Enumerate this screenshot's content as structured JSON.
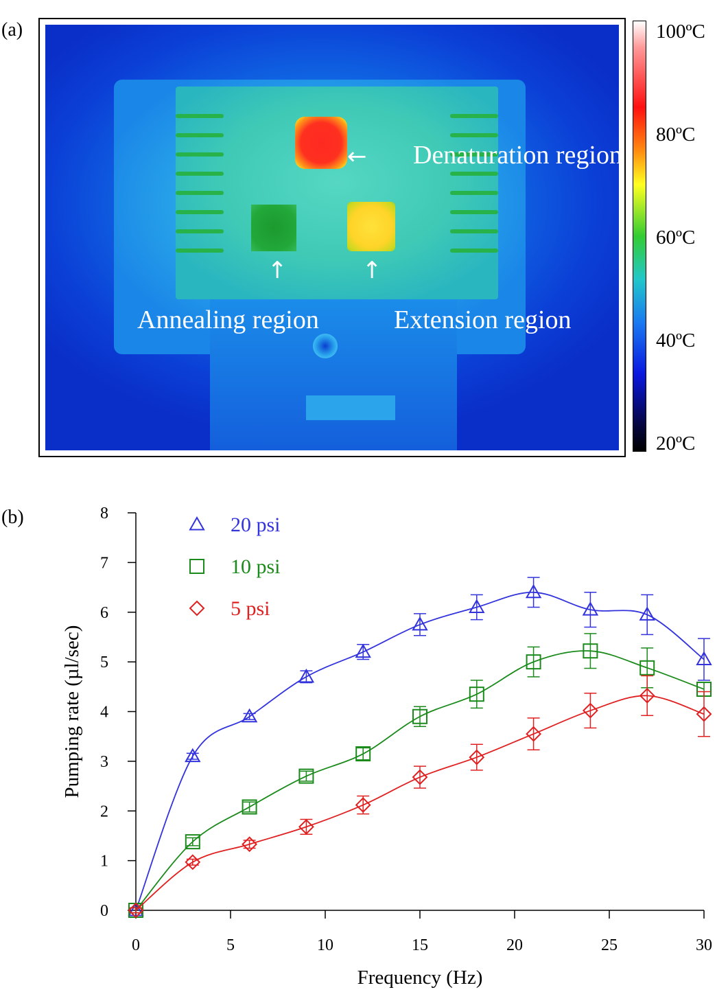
{
  "panel_a": {
    "label": "(a)",
    "annotations": {
      "denaturation": "Denaturation region",
      "annealing": "Annealing region",
      "extension": "Extension region"
    },
    "colorbar_ticks": [
      "100ºC",
      "80ºC",
      "60ºC",
      "40ºC",
      "20ºC"
    ]
  },
  "panel_b": {
    "label": "(b)"
  },
  "chart_data": {
    "type": "scatter",
    "xlabel": "Frequency (Hz)",
    "ylabel": "Pumping rate (µl/sec)",
    "xlim": [
      0,
      30
    ],
    "ylim": [
      0,
      8
    ],
    "xticks": [
      0,
      5,
      10,
      15,
      20,
      25,
      30
    ],
    "yticks": [
      0,
      1,
      2,
      3,
      4,
      5,
      6,
      7,
      8
    ],
    "legend_position": "top-left",
    "x": [
      0,
      3,
      6,
      9,
      12,
      15,
      18,
      21,
      24,
      27,
      30
    ],
    "series": [
      {
        "name": "20 psi",
        "marker": "triangle",
        "color": "#3333dd",
        "values": [
          0,
          3.1,
          3.9,
          4.7,
          5.2,
          5.75,
          6.1,
          6.4,
          6.05,
          5.95,
          5.05
        ],
        "errors": [
          0.05,
          0.06,
          0.06,
          0.12,
          0.15,
          0.22,
          0.25,
          0.3,
          0.35,
          0.4,
          0.42
        ]
      },
      {
        "name": "10 psi",
        "marker": "square",
        "color": "#1a8a1a",
        "values": [
          0,
          1.38,
          2.08,
          2.7,
          3.15,
          3.9,
          4.35,
          5.0,
          5.22,
          4.88,
          4.45
        ],
        "errors": [
          0.05,
          0.08,
          0.1,
          0.1,
          0.12,
          0.2,
          0.28,
          0.3,
          0.35,
          0.4,
          0.14
        ]
      },
      {
        "name": "5 psi",
        "marker": "diamond",
        "color": "#e02020",
        "values": [
          0,
          0.97,
          1.33,
          1.68,
          2.12,
          2.68,
          3.08,
          3.55,
          4.02,
          4.32,
          3.95
        ],
        "errors": [
          0.05,
          0.06,
          0.08,
          0.15,
          0.18,
          0.22,
          0.26,
          0.32,
          0.35,
          0.4,
          0.45
        ]
      }
    ]
  }
}
